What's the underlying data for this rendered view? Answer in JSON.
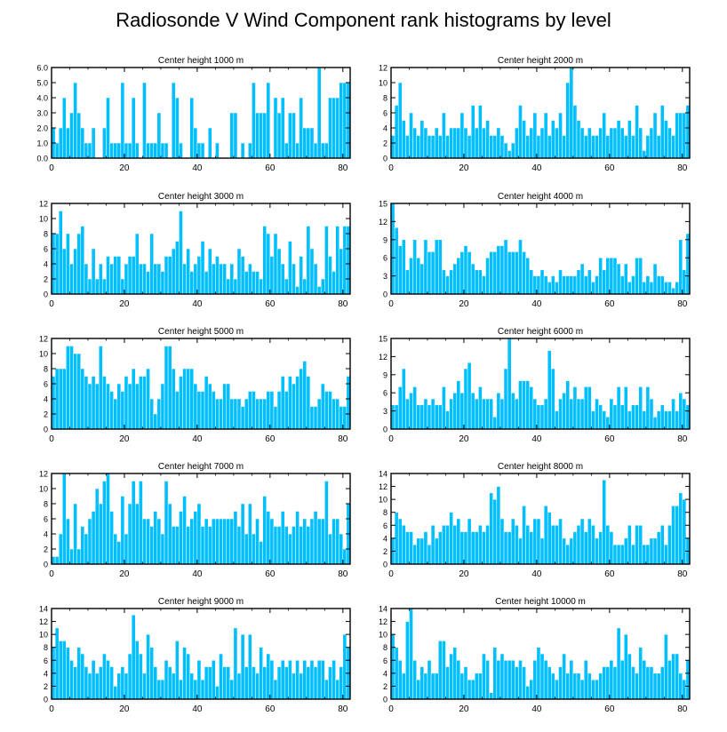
{
  "title": "Radiosonde V Wind Component rank histograms by level",
  "colors": {
    "bar": "#00bfff",
    "bar_edge": "#ffffff",
    "axis": "#000000"
  },
  "chart_data": [
    {
      "type": "bar",
      "title": "Center height 1000 m",
      "xlim": [
        0,
        82
      ],
      "ylim": [
        0,
        6
      ],
      "xticks": [
        0,
        20,
        40,
        60,
        80
      ],
      "yticks": [
        "0.0",
        "1.0",
        "2.0",
        "3.0",
        "4.0",
        "5.0",
        "6.0"
      ],
      "values": [
        2,
        1,
        2,
        4,
        2,
        3,
        5,
        3,
        2,
        1,
        1,
        2,
        0,
        0,
        2,
        4,
        1,
        1,
        1,
        5,
        1,
        1,
        4,
        1,
        0,
        5,
        1,
        1,
        1,
        3,
        1,
        1,
        0,
        5,
        4,
        1,
        0,
        0,
        4,
        2,
        1,
        1,
        0,
        2,
        0,
        1,
        0,
        0,
        0,
        3,
        3,
        0,
        1,
        0,
        1,
        5,
        3,
        3,
        3,
        5,
        0,
        4,
        3,
        4,
        1,
        3,
        3,
        1,
        4,
        2,
        2,
        2,
        1,
        6,
        1,
        1,
        4,
        4,
        4,
        5,
        5,
        5
      ]
    },
    {
      "type": "bar",
      "title": "Center height 2000 m",
      "xlim": [
        0,
        82
      ],
      "ylim": [
        0,
        12
      ],
      "xticks": [
        0,
        20,
        40,
        60,
        80
      ],
      "yticks": [
        "0",
        "2",
        "4",
        "6",
        "8",
        "10",
        "12"
      ],
      "values": [
        3,
        7,
        10,
        5,
        3,
        6,
        4,
        3,
        5,
        4,
        3,
        3,
        4,
        3,
        6,
        3,
        4,
        4,
        4,
        6,
        4,
        3,
        7,
        4,
        7,
        4,
        5,
        3,
        3,
        4,
        3,
        2,
        1,
        2,
        4,
        7,
        5,
        3,
        4,
        6,
        3,
        4,
        6,
        3,
        5,
        4,
        6,
        3,
        10,
        12,
        7,
        5,
        4,
        3,
        4,
        3,
        3,
        4,
        6,
        3,
        4,
        4,
        5,
        4,
        3,
        5,
        3,
        7,
        4,
        1,
        3,
        4,
        6,
        3,
        7,
        5,
        4,
        3,
        6,
        6,
        6,
        7
      ]
    },
    {
      "type": "bar",
      "title": "Center height 3000 m",
      "xlim": [
        0,
        82
      ],
      "ylim": [
        0,
        12
      ],
      "xticks": [
        0,
        20,
        40,
        60,
        80
      ],
      "yticks": [
        "0",
        "2",
        "4",
        "6",
        "8",
        "10",
        "12"
      ],
      "values": [
        8,
        8,
        11,
        6,
        8,
        4,
        6,
        8,
        9,
        4,
        2,
        6,
        2,
        4,
        2,
        5,
        4,
        5,
        5,
        2,
        4,
        5,
        5,
        8,
        4,
        4,
        3,
        8,
        4,
        4,
        3,
        5,
        5,
        6,
        7,
        11,
        4,
        6,
        3,
        4,
        5,
        7,
        3,
        6,
        4,
        5,
        4,
        4,
        2,
        4,
        2,
        6,
        5,
        3,
        4,
        3,
        3,
        2,
        9,
        8,
        5,
        8,
        6,
        4,
        2,
        7,
        4,
        1,
        5,
        2,
        9,
        6,
        4,
        1,
        2,
        9,
        5,
        3,
        9,
        6,
        9,
        9
      ]
    },
    {
      "type": "bar",
      "title": "Center height 4000 m",
      "xlim": [
        0,
        82
      ],
      "ylim": [
        0,
        15
      ],
      "xticks": [
        0,
        20,
        40,
        60,
        80
      ],
      "yticks": [
        "0",
        "3",
        "6",
        "9",
        "12",
        "15"
      ],
      "values": [
        15,
        11,
        8,
        9,
        4,
        6,
        9,
        6,
        5,
        9,
        7,
        7,
        9,
        9,
        4,
        3,
        4,
        5,
        6,
        7,
        8,
        7,
        5,
        4,
        4,
        3,
        6,
        7,
        7,
        8,
        8,
        9,
        7,
        7,
        7,
        9,
        7,
        6,
        4,
        3,
        3,
        4,
        3,
        2,
        3,
        2,
        4,
        3,
        3,
        3,
        3,
        4,
        5,
        3,
        4,
        2,
        3,
        6,
        4,
        6,
        6,
        6,
        5,
        3,
        5,
        2,
        3,
        6,
        6,
        2,
        3,
        2,
        5,
        3,
        3,
        2,
        2,
        1,
        2,
        9,
        4,
        10
      ]
    },
    {
      "type": "bar",
      "title": "Center height 5000 m",
      "xlim": [
        0,
        82
      ],
      "ylim": [
        0,
        12
      ],
      "xticks": [
        0,
        20,
        40,
        60,
        80
      ],
      "yticks": [
        "0",
        "2",
        "4",
        "6",
        "8",
        "10",
        "12"
      ],
      "values": [
        7,
        8,
        8,
        8,
        11,
        11,
        10,
        10,
        8,
        7,
        6,
        7,
        6,
        11,
        7,
        6,
        5,
        4,
        6,
        5,
        7,
        6,
        8,
        6,
        7,
        7,
        8,
        4,
        2,
        4,
        6,
        11,
        11,
        8,
        5,
        7,
        8,
        8,
        8,
        6,
        5,
        5,
        7,
        6,
        5,
        4,
        4,
        6,
        6,
        4,
        4,
        4,
        3,
        4,
        5,
        5,
        4,
        4,
        4,
        5,
        5,
        3,
        5,
        7,
        5,
        7,
        6,
        7,
        8,
        9,
        7,
        3,
        3,
        4,
        6,
        5,
        5,
        4,
        4,
        3,
        3,
        7
      ]
    },
    {
      "type": "bar",
      "title": "Center height 6000 m",
      "xlim": [
        0,
        82
      ],
      "ylim": [
        0,
        15
      ],
      "xticks": [
        0,
        20,
        40,
        60,
        80
      ],
      "yticks": [
        "0",
        "3",
        "6",
        "9",
        "12",
        "15"
      ],
      "values": [
        4,
        4,
        7,
        10,
        5,
        6,
        7,
        4,
        4,
        5,
        4,
        5,
        4,
        4,
        7,
        3,
        5,
        6,
        8,
        6,
        10,
        11,
        6,
        5,
        7,
        5,
        5,
        5,
        2,
        6,
        5,
        10,
        15,
        6,
        5,
        8,
        8,
        8,
        7,
        5,
        4,
        4,
        5,
        13,
        10,
        3,
        5,
        6,
        8,
        5,
        7,
        5,
        5,
        7,
        7,
        3,
        5,
        4,
        3,
        2,
        5,
        4,
        7,
        4,
        7,
        3,
        4,
        4,
        7,
        3,
        7,
        5,
        2,
        3,
        4,
        3,
        3,
        5,
        3,
        6,
        5,
        4
      ]
    },
    {
      "type": "bar",
      "title": "Center height 7000 m",
      "xlim": [
        0,
        82
      ],
      "ylim": [
        0,
        12
      ],
      "xticks": [
        0,
        20,
        40,
        60,
        80
      ],
      "yticks": [
        "0",
        "2",
        "4",
        "6",
        "8",
        "10",
        "12"
      ],
      "values": [
        1,
        1,
        4,
        12,
        6,
        2,
        8,
        2,
        5,
        4,
        6,
        7,
        10,
        8,
        11,
        12,
        7,
        4,
        3,
        9,
        4,
        8,
        11,
        8,
        11,
        6,
        6,
        5,
        7,
        6,
        4,
        11,
        8,
        5,
        5,
        7,
        9,
        5,
        6,
        7,
        8,
        5,
        6,
        5,
        6,
        6,
        6,
        6,
        6,
        6,
        7,
        5,
        8,
        4,
        8,
        4,
        6,
        3,
        9,
        7,
        6,
        5,
        5,
        7,
        5,
        4,
        5,
        7,
        5,
        6,
        5,
        6,
        7,
        6,
        6,
        11,
        4,
        6,
        6,
        4,
        2,
        8
      ]
    },
    {
      "type": "bar",
      "title": "Center height 8000 m",
      "xlim": [
        0,
        82
      ],
      "ylim": [
        0,
        14
      ],
      "xticks": [
        0,
        20,
        40,
        60,
        80
      ],
      "yticks": [
        "0",
        "2",
        "4",
        "6",
        "8",
        "10",
        "12",
        "14"
      ],
      "values": [
        4,
        8,
        7,
        6,
        5,
        5,
        3,
        4,
        4,
        5,
        3,
        6,
        4,
        5,
        6,
        6,
        8,
        6,
        7,
        5,
        5,
        7,
        5,
        5,
        6,
        5,
        6,
        11,
        10,
        12,
        7,
        5,
        5,
        7,
        6,
        4,
        9,
        6,
        5,
        7,
        7,
        4,
        9,
        8,
        6,
        6,
        7,
        4,
        3,
        4,
        5,
        6,
        7,
        5,
        7,
        6,
        4,
        5,
        13,
        6,
        5,
        3,
        3,
        3,
        4,
        6,
        3,
        6,
        6,
        3,
        3,
        4,
        4,
        5,
        6,
        3,
        6,
        9,
        9,
        11,
        10,
        4
      ]
    },
    {
      "type": "bar",
      "title": "Center height 9000 m",
      "xlim": [
        0,
        82
      ],
      "ylim": [
        0,
        14
      ],
      "xticks": [
        0,
        20,
        40,
        60,
        80
      ],
      "yticks": [
        "0",
        "2",
        "4",
        "6",
        "8",
        "10",
        "12",
        "14"
      ],
      "values": [
        8,
        11,
        9,
        9,
        8,
        6,
        5,
        8,
        7,
        5,
        4,
        6,
        4,
        5,
        7,
        6,
        5,
        2,
        4,
        5,
        4,
        7,
        13,
        9,
        7,
        4,
        10,
        8,
        5,
        3,
        3,
        6,
        5,
        4,
        9,
        3,
        8,
        7,
        4,
        3,
        6,
        3,
        5,
        5,
        6,
        2,
        7,
        5,
        5,
        3,
        11,
        4,
        10,
        5,
        10,
        5,
        4,
        8,
        5,
        7,
        6,
        3,
        5,
        6,
        5,
        6,
        4,
        6,
        4,
        6,
        5,
        6,
        5,
        6,
        6,
        3,
        5,
        6,
        3,
        5,
        10,
        8
      ]
    },
    {
      "type": "bar",
      "title": "Center height 10000 m",
      "xlim": [
        0,
        82
      ],
      "ylim": [
        0,
        14
      ],
      "xticks": [
        0,
        20,
        40,
        60,
        80
      ],
      "yticks": [
        "0",
        "2",
        "4",
        "6",
        "8",
        "10",
        "12",
        "14"
      ],
      "values": [
        10,
        8,
        6,
        4,
        12,
        14,
        6,
        3,
        5,
        4,
        6,
        4,
        4,
        9,
        9,
        5,
        7,
        8,
        6,
        4,
        5,
        3,
        3,
        4,
        4,
        7,
        6,
        1,
        8,
        6,
        7,
        6,
        6,
        6,
        5,
        6,
        5,
        2,
        3,
        6,
        8,
        7,
        6,
        5,
        4,
        3,
        5,
        7,
        4,
        6,
        4,
        4,
        3,
        6,
        4,
        3,
        3,
        4,
        5,
        5,
        6,
        5,
        11,
        6,
        10,
        7,
        5,
        4,
        8,
        6,
        5,
        5,
        4,
        4,
        5,
        10,
        6,
        7,
        7,
        4,
        3,
        6
      ]
    }
  ]
}
